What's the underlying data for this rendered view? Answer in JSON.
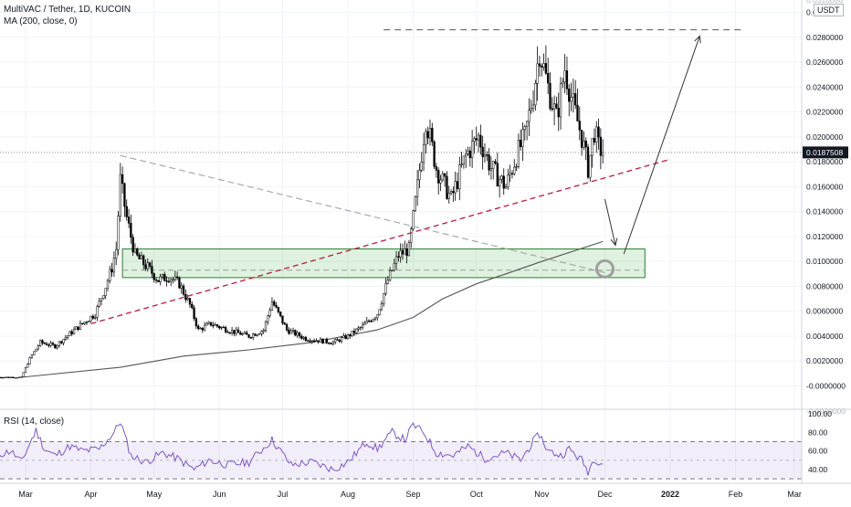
{
  "header": {
    "symbol": "MultiVAC / Tether, 1D, KUCOIN",
    "ma": "MA (200, close, 0)",
    "rsi": "RSI (14, close)",
    "unit": "USDT"
  },
  "chart_data": [
    {
      "type": "candlestick",
      "title": "MultiVAC / Tether, 1D, KUCOIN",
      "x_ticks": [
        "Mar",
        "Apr",
        "May",
        "Jun",
        "Jul",
        "Aug",
        "Sep",
        "Oct",
        "Nov",
        "Dec",
        "2022",
        "Feb",
        "Mar"
      ],
      "y_ticks": [
        "0.0300000",
        "0.0280000",
        "0.0260000",
        "0.0240000",
        "0.0220000",
        "0.0200000",
        "0.0180000",
        "0.0160000",
        "0.0140000",
        "0.0120000",
        "0.0100000",
        "0.0080000",
        "0.0060000",
        "0.0040000",
        "0.0020000",
        "-0.0000000"
      ],
      "y_ticks_partial": [
        "0.0310000",
        "-0.0020000"
      ],
      "ylim": [
        -0.0021,
        0.031
      ],
      "last_price": "0.0187508",
      "price_path": [
        {
          "date": "2021-02-15",
          "close": 0.0007
        },
        {
          "date": "2021-02-27",
          "close": 0.0007
        },
        {
          "date": "2021-03-03",
          "close": 0.0022
        },
        {
          "date": "2021-03-08",
          "close": 0.0035
        },
        {
          "date": "2021-03-15",
          "close": 0.0032
        },
        {
          "date": "2021-03-22",
          "close": 0.0042
        },
        {
          "date": "2021-03-28",
          "close": 0.005
        },
        {
          "date": "2021-04-03",
          "close": 0.0058
        },
        {
          "date": "2021-04-08",
          "close": 0.008
        },
        {
          "date": "2021-04-11",
          "close": 0.0095
        },
        {
          "date": "2021-04-13",
          "close": 0.011
        },
        {
          "date": "2021-04-15",
          "close": 0.0165
        },
        {
          "date": "2021-04-18",
          "close": 0.0135
        },
        {
          "date": "2021-04-22",
          "close": 0.0105
        },
        {
          "date": "2021-04-28",
          "close": 0.0095
        },
        {
          "date": "2021-05-03",
          "close": 0.0085
        },
        {
          "date": "2021-05-08",
          "close": 0.0088
        },
        {
          "date": "2021-05-13",
          "close": 0.0082
        },
        {
          "date": "2021-05-18",
          "close": 0.0065
        },
        {
          "date": "2021-05-22",
          "close": 0.0045
        },
        {
          "date": "2021-05-28",
          "close": 0.005
        },
        {
          "date": "2021-06-05",
          "close": 0.0045
        },
        {
          "date": "2021-06-15",
          "close": 0.004
        },
        {
          "date": "2021-06-22",
          "close": 0.0045
        },
        {
          "date": "2021-06-26",
          "close": 0.0068
        },
        {
          "date": "2021-07-03",
          "close": 0.0045
        },
        {
          "date": "2021-07-12",
          "close": 0.0038
        },
        {
          "date": "2021-07-25",
          "close": 0.0035
        },
        {
          "date": "2021-08-01",
          "close": 0.004
        },
        {
          "date": "2021-08-08",
          "close": 0.0048
        },
        {
          "date": "2021-08-15",
          "close": 0.0058
        },
        {
          "date": "2021-08-20",
          "close": 0.0085
        },
        {
          "date": "2021-08-25",
          "close": 0.0105
        },
        {
          "date": "2021-08-30",
          "close": 0.011
        },
        {
          "date": "2021-09-03",
          "close": 0.016
        },
        {
          "date": "2021-09-07",
          "close": 0.0215
        },
        {
          "date": "2021-09-12",
          "close": 0.0175
        },
        {
          "date": "2021-09-19",
          "close": 0.015
        },
        {
          "date": "2021-09-26",
          "close": 0.0185
        },
        {
          "date": "2021-10-02",
          "close": 0.02
        },
        {
          "date": "2021-10-08",
          "close": 0.0175
        },
        {
          "date": "2021-10-15",
          "close": 0.016
        },
        {
          "date": "2021-10-20",
          "close": 0.0185
        },
        {
          "date": "2021-10-24",
          "close": 0.02
        },
        {
          "date": "2021-10-28",
          "close": 0.0235
        },
        {
          "date": "2021-10-31",
          "close": 0.027
        },
        {
          "date": "2021-11-04",
          "close": 0.024
        },
        {
          "date": "2021-11-08",
          "close": 0.0215
        },
        {
          "date": "2021-11-12",
          "close": 0.0255
        },
        {
          "date": "2021-11-16",
          "close": 0.0225
        },
        {
          "date": "2021-11-20",
          "close": 0.02
        },
        {
          "date": "2021-11-23",
          "close": 0.0175
        },
        {
          "date": "2021-11-26",
          "close": 0.0205
        },
        {
          "date": "2021-11-28",
          "close": 0.0192
        },
        {
          "date": "2021-11-30",
          "close": 0.0187508
        }
      ],
      "ma200": [
        {
          "date": "2021-02-27",
          "value": 0.0007
        },
        {
          "date": "2021-04-15",
          "value": 0.0015
        },
        {
          "date": "2021-05-15",
          "value": 0.0024
        },
        {
          "date": "2021-06-15",
          "value": 0.0029
        },
        {
          "date": "2021-07-15",
          "value": 0.0035
        },
        {
          "date": "2021-08-15",
          "value": 0.0045
        },
        {
          "date": "2021-09-01",
          "value": 0.0055
        },
        {
          "date": "2021-09-15",
          "value": 0.007
        },
        {
          "date": "2021-10-01",
          "value": 0.0082
        },
        {
          "date": "2021-10-15",
          "value": 0.009
        },
        {
          "date": "2021-11-01",
          "value": 0.01
        },
        {
          "date": "2021-11-30",
          "value": 0.0116
        }
      ],
      "annotations": {
        "resistance_level": 0.0286,
        "support_zone": [
          0.0087,
          0.011
        ],
        "support_zone_midline": 0.0093,
        "descending_trendline": [
          {
            "date": "2021-04-15",
            "value": 0.0185
          },
          {
            "date": "2021-12-01",
            "value": 0.0091
          }
        ],
        "ascending_trendline": [
          {
            "date": "2021-04-01",
            "value": 0.005
          },
          {
            "date": "2022-01-01",
            "value": 0.0182
          }
        ],
        "target_circle": {
          "date": "2021-12-01",
          "value": 0.0094
        },
        "arrow_down": [
          {
            "date": "2021-12-01",
            "value": 0.015
          },
          {
            "date": "2021-12-06",
            "value": 0.0113
          }
        ],
        "arrow_up": [
          {
            "date": "2021-12-10",
            "value": 0.0106
          },
          {
            "date": "2022-01-15",
            "value": 0.0281
          }
        ]
      }
    },
    {
      "type": "line",
      "title": "RSI (14, close)",
      "y_ticks": [
        "100.00",
        "80.00",
        "60.00",
        "40.00"
      ],
      "ylim": [
        22,
        100
      ],
      "bands": {
        "upper": 70,
        "middle": 50,
        "lower": 30
      },
      "rsi": [
        {
          "date": "2021-02-15",
          "value": 55
        },
        {
          "date": "2021-02-22",
          "value": 60
        },
        {
          "date": "2021-02-27",
          "value": 48
        },
        {
          "date": "2021-03-03",
          "value": 68
        },
        {
          "date": "2021-03-06",
          "value": 82
        },
        {
          "date": "2021-03-10",
          "value": 62
        },
        {
          "date": "2021-03-15",
          "value": 55
        },
        {
          "date": "2021-03-22",
          "value": 65
        },
        {
          "date": "2021-03-28",
          "value": 60
        },
        {
          "date": "2021-04-05",
          "value": 62
        },
        {
          "date": "2021-04-12",
          "value": 80
        },
        {
          "date": "2021-04-15",
          "value": 92
        },
        {
          "date": "2021-04-20",
          "value": 55
        },
        {
          "date": "2021-04-27",
          "value": 48
        },
        {
          "date": "2021-05-05",
          "value": 58
        },
        {
          "date": "2021-05-12",
          "value": 52
        },
        {
          "date": "2021-05-20",
          "value": 40
        },
        {
          "date": "2021-05-27",
          "value": 50
        },
        {
          "date": "2021-06-05",
          "value": 45
        },
        {
          "date": "2021-06-15",
          "value": 48
        },
        {
          "date": "2021-06-26",
          "value": 72
        },
        {
          "date": "2021-07-05",
          "value": 45
        },
        {
          "date": "2021-07-15",
          "value": 48
        },
        {
          "date": "2021-07-25",
          "value": 40
        },
        {
          "date": "2021-08-01",
          "value": 48
        },
        {
          "date": "2021-08-10",
          "value": 70
        },
        {
          "date": "2021-08-15",
          "value": 62
        },
        {
          "date": "2021-08-22",
          "value": 80
        },
        {
          "date": "2021-08-28",
          "value": 72
        },
        {
          "date": "2021-09-01",
          "value": 88
        },
        {
          "date": "2021-09-06",
          "value": 80
        },
        {
          "date": "2021-09-12",
          "value": 58
        },
        {
          "date": "2021-09-20",
          "value": 55
        },
        {
          "date": "2021-09-27",
          "value": 65
        },
        {
          "date": "2021-10-05",
          "value": 52
        },
        {
          "date": "2021-10-15",
          "value": 58
        },
        {
          "date": "2021-10-22",
          "value": 50
        },
        {
          "date": "2021-10-28",
          "value": 70
        },
        {
          "date": "2021-10-31",
          "value": 78
        },
        {
          "date": "2021-11-04",
          "value": 60
        },
        {
          "date": "2021-11-10",
          "value": 55
        },
        {
          "date": "2021-11-14",
          "value": 62
        },
        {
          "date": "2021-11-20",
          "value": 50
        },
        {
          "date": "2021-11-23",
          "value": 38
        },
        {
          "date": "2021-11-26",
          "value": 52
        },
        {
          "date": "2021-11-30",
          "value": 46
        }
      ]
    }
  ]
}
